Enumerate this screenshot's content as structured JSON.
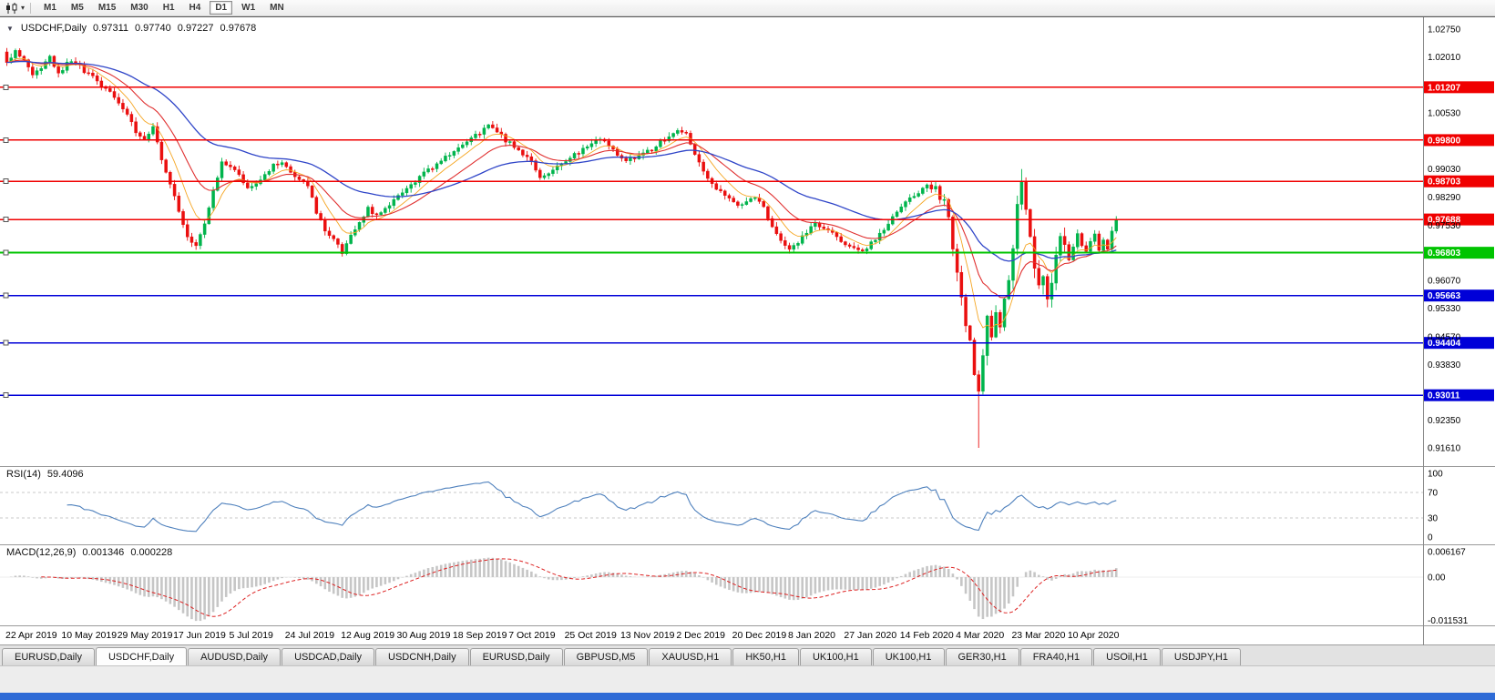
{
  "toolbar": {
    "timeframes": [
      "M1",
      "M5",
      "M15",
      "M30",
      "H1",
      "H4",
      "D1",
      "W1",
      "MN"
    ],
    "active": "D1"
  },
  "chart": {
    "symbol": "USDCHF,Daily",
    "open": "0.97311",
    "high": "0.97740",
    "low": "0.97227",
    "close": "0.97678"
  },
  "rsi": {
    "label": "RSI(14)",
    "value": "59.4096",
    "axis": [
      100,
      70,
      30,
      0
    ],
    "levels": [
      70,
      30
    ]
  },
  "macd": {
    "label": "MACD(12,26,9)",
    "value1": "0.001346",
    "value2": "0.000228",
    "axis": [
      "0.006167",
      "0.00",
      "-0.011531"
    ]
  },
  "colors": {
    "candle_up": "#00b44c",
    "candle_down": "#ea0f0f",
    "rsi_line": "#4f81bd",
    "macd_hist": "#c6c6c6",
    "macd_signal": "#dd2222",
    "level_red": "#f00000",
    "level_blue": "#0000d8",
    "level_green": "#00c400"
  },
  "chart_data": {
    "type": "candlestick",
    "symbol": "USDCHF",
    "timeframe": "Daily",
    "last_ohlc": {
      "open": 0.97311,
      "high": 0.9774,
      "low": 0.97227,
      "close": 0.97678
    },
    "price_range": [
      0.9115,
      1.0302
    ],
    "y_ticks": [
      "1.02750",
      "1.02010",
      "1.00530",
      "0.99030",
      "0.98290",
      "0.97530",
      "0.96070",
      "0.95330",
      "0.94570",
      "0.93830",
      "0.92350",
      "0.91610"
    ],
    "x_labels": [
      "22 Apr 2019",
      "10 May 2019",
      "29 May 2019",
      "17 Jun 2019",
      "5 Jul 2019",
      "24 Jul 2019",
      "12 Aug 2019",
      "30 Aug 2019",
      "18 Sep 2019",
      "7 Oct 2019",
      "25 Oct 2019",
      "13 Nov 2019",
      "2 Dec 2019",
      "20 Dec 2019",
      "8 Jan 2020",
      "27 Jan 2020",
      "14 Feb 2020",
      "4 Mar 2020",
      "23 Mar 2020",
      "10 Apr 2020"
    ],
    "candles_per_label": 13,
    "num_candles": 259,
    "candle_step": 4.72,
    "x_start": 6,
    "last_close": 0.97678,
    "crash_index": 226,
    "crash_low": 0.9161,
    "spike_index": 236,
    "spike_high": 0.9903,
    "levels": [
      {
        "price": 1.01207,
        "label": "1.01207",
        "color": "#f00000",
        "width": 1.6
      },
      {
        "price": 0.998,
        "label": "0.99800",
        "color": "#f00000",
        "width": 1.6
      },
      {
        "price": 0.98703,
        "label": "0.98703",
        "color": "#f00000",
        "width": 1.6
      },
      {
        "price": 0.97688,
        "label": "0.97688",
        "color": "#f00000",
        "width": 1.6
      },
      {
        "price": 0.96803,
        "label": "0.96803",
        "color": "#00c400",
        "width": 2.2
      },
      {
        "price": 0.95663,
        "label": "0.95663",
        "color": "#0000d8",
        "width": 1.6
      },
      {
        "price": 0.94404,
        "label": "0.94404",
        "color": "#0000d8",
        "width": 1.6
      },
      {
        "price": 0.93011,
        "label": "0.93011",
        "color": "#0000d8",
        "width": 1.6
      }
    ],
    "moving_averages": [
      {
        "name": "fast",
        "period": 8,
        "color": "#f5a623",
        "width": 0.9
      },
      {
        "name": "medium",
        "period": 18,
        "color": "#e03030",
        "width": 1.1
      },
      {
        "name": "slow",
        "period": 45,
        "color": "#2f45c8",
        "width": 1.3
      }
    ],
    "close_anchors": [
      [
        0,
        1.0185
      ],
      [
        2,
        1.0215
      ],
      [
        4,
        1.0195
      ],
      [
        6,
        1.015
      ],
      [
        8,
        1.0175
      ],
      [
        10,
        1.02
      ],
      [
        12,
        1.0155
      ],
      [
        14,
        1.0185
      ],
      [
        16,
        1.019
      ],
      [
        18,
        1.016
      ],
      [
        20,
        1.0148
      ],
      [
        22,
        1.0125
      ],
      [
        24,
        1.0108
      ],
      [
        26,
        1.0078
      ],
      [
        28,
        1.0052
      ],
      [
        30,
        1.0
      ],
      [
        32,
        0.9988
      ],
      [
        34,
        1.0012
      ],
      [
        36,
        0.993
      ],
      [
        38,
        0.9868
      ],
      [
        40,
        0.979
      ],
      [
        42,
        0.9725
      ],
      [
        44,
        0.97
      ],
      [
        46,
        0.9762
      ],
      [
        48,
        0.9845
      ],
      [
        50,
        0.9918
      ],
      [
        52,
        0.9905
      ],
      [
        54,
        0.9888
      ],
      [
        56,
        0.9855
      ],
      [
        58,
        0.9868
      ],
      [
        60,
        0.989
      ],
      [
        62,
        0.9912
      ],
      [
        64,
        0.992
      ],
      [
        66,
        0.9896
      ],
      [
        68,
        0.988
      ],
      [
        70,
        0.9862
      ],
      [
        72,
        0.979
      ],
      [
        74,
        0.974
      ],
      [
        76,
        0.9716
      ],
      [
        78,
        0.968
      ],
      [
        80,
        0.9722
      ],
      [
        82,
        0.9756
      ],
      [
        84,
        0.98
      ],
      [
        86,
        0.9776
      ],
      [
        88,
        0.9796
      ],
      [
        90,
        0.982
      ],
      [
        92,
        0.984
      ],
      [
        94,
        0.986
      ],
      [
        96,
        0.988
      ],
      [
        98,
        0.99
      ],
      [
        100,
        0.9918
      ],
      [
        102,
        0.9934
      ],
      [
        104,
        0.995
      ],
      [
        106,
        0.9968
      ],
      [
        108,
        0.9984
      ],
      [
        110,
        1.0
      ],
      [
        112,
        1.002
      ],
      [
        114,
        1.0004
      ],
      [
        116,
        0.998
      ],
      [
        118,
        0.9964
      ],
      [
        120,
        0.9944
      ],
      [
        122,
        0.9928
      ],
      [
        124,
        0.988
      ],
      [
        126,
        0.9892
      ],
      [
        128,
        0.991
      ],
      [
        130,
        0.9926
      ],
      [
        132,
        0.994
      ],
      [
        134,
        0.9954
      ],
      [
        136,
        0.997
      ],
      [
        138,
        0.9984
      ],
      [
        140,
        0.9964
      ],
      [
        142,
        0.9944
      ],
      [
        144,
        0.9926
      ],
      [
        146,
        0.9932
      ],
      [
        148,
        0.9944
      ],
      [
        150,
        0.9956
      ],
      [
        152,
        0.9974
      ],
      [
        154,
        0.999
      ],
      [
        156,
        1.0008
      ],
      [
        158,
        0.9994
      ],
      [
        160,
        0.994
      ],
      [
        162,
        0.9895
      ],
      [
        164,
        0.986
      ],
      [
        166,
        0.9846
      ],
      [
        168,
        0.9826
      ],
      [
        170,
        0.9806
      ],
      [
        172,
        0.9816
      ],
      [
        174,
        0.983
      ],
      [
        176,
        0.98
      ],
      [
        178,
        0.9752
      ],
      [
        180,
        0.9716
      ],
      [
        182,
        0.9686
      ],
      [
        184,
        0.971
      ],
      [
        186,
        0.9734
      ],
      [
        188,
        0.9756
      ],
      [
        190,
        0.9744
      ],
      [
        192,
        0.973
      ],
      [
        194,
        0.9714
      ],
      [
        196,
        0.9696
      ],
      [
        198,
        0.9686
      ],
      [
        200,
        0.9692
      ],
      [
        202,
        0.9716
      ],
      [
        204,
        0.9744
      ],
      [
        206,
        0.9776
      ],
      [
        208,
        0.9806
      ],
      [
        210,
        0.9826
      ],
      [
        212,
        0.9842
      ],
      [
        214,
        0.9856
      ],
      [
        216,
        0.9846
      ],
      [
        218,
        0.9826
      ],
      [
        219,
        0.978
      ],
      [
        220,
        0.97
      ],
      [
        221,
        0.962
      ],
      [
        222,
        0.956
      ],
      [
        223,
        0.95
      ],
      [
        224,
        0.944
      ],
      [
        225,
        0.936
      ],
      [
        226,
        0.93
      ],
      [
        227,
        0.942
      ],
      [
        228,
        0.95
      ],
      [
        229,
        0.9446
      ],
      [
        230,
        0.953
      ],
      [
        231,
        0.948
      ],
      [
        232,
        0.955
      ],
      [
        233,
        0.962
      ],
      [
        234,
        0.97
      ],
      [
        235,
        0.98
      ],
      [
        236,
        0.987
      ],
      [
        237,
        0.98
      ],
      [
        238,
        0.971
      ],
      [
        239,
        0.965
      ],
      [
        240,
        0.958
      ],
      [
        241,
        0.9625
      ],
      [
        242,
        0.956
      ],
      [
        243,
        0.961
      ],
      [
        244,
        0.968
      ],
      [
        245,
        0.972
      ],
      [
        246,
        0.969
      ],
      [
        247,
        0.966
      ],
      [
        248,
        0.97
      ],
      [
        249,
        0.973
      ],
      [
        250,
        0.97
      ],
      [
        251,
        0.968
      ],
      [
        252,
        0.9705
      ],
      [
        253,
        0.9725
      ],
      [
        254,
        0.969
      ],
      [
        255,
        0.971
      ],
      [
        256,
        0.9685
      ],
      [
        257,
        0.9735
      ],
      [
        258,
        0.9768
      ]
    ]
  },
  "tabs": [
    "EURUSD,Daily",
    "USDCHF,Daily",
    "AUDUSD,Daily",
    "USDCAD,Daily",
    "USDCNH,Daily",
    "EURUSD,Daily",
    "GBPUSD,M5",
    "XAUUSD,H1",
    "HK50,H1",
    "UK100,H1",
    "UK100,H1",
    "GER30,H1",
    "FRA40,H1",
    "USOil,H1",
    "USDJPY,H1"
  ],
  "active_tab_index": 1
}
